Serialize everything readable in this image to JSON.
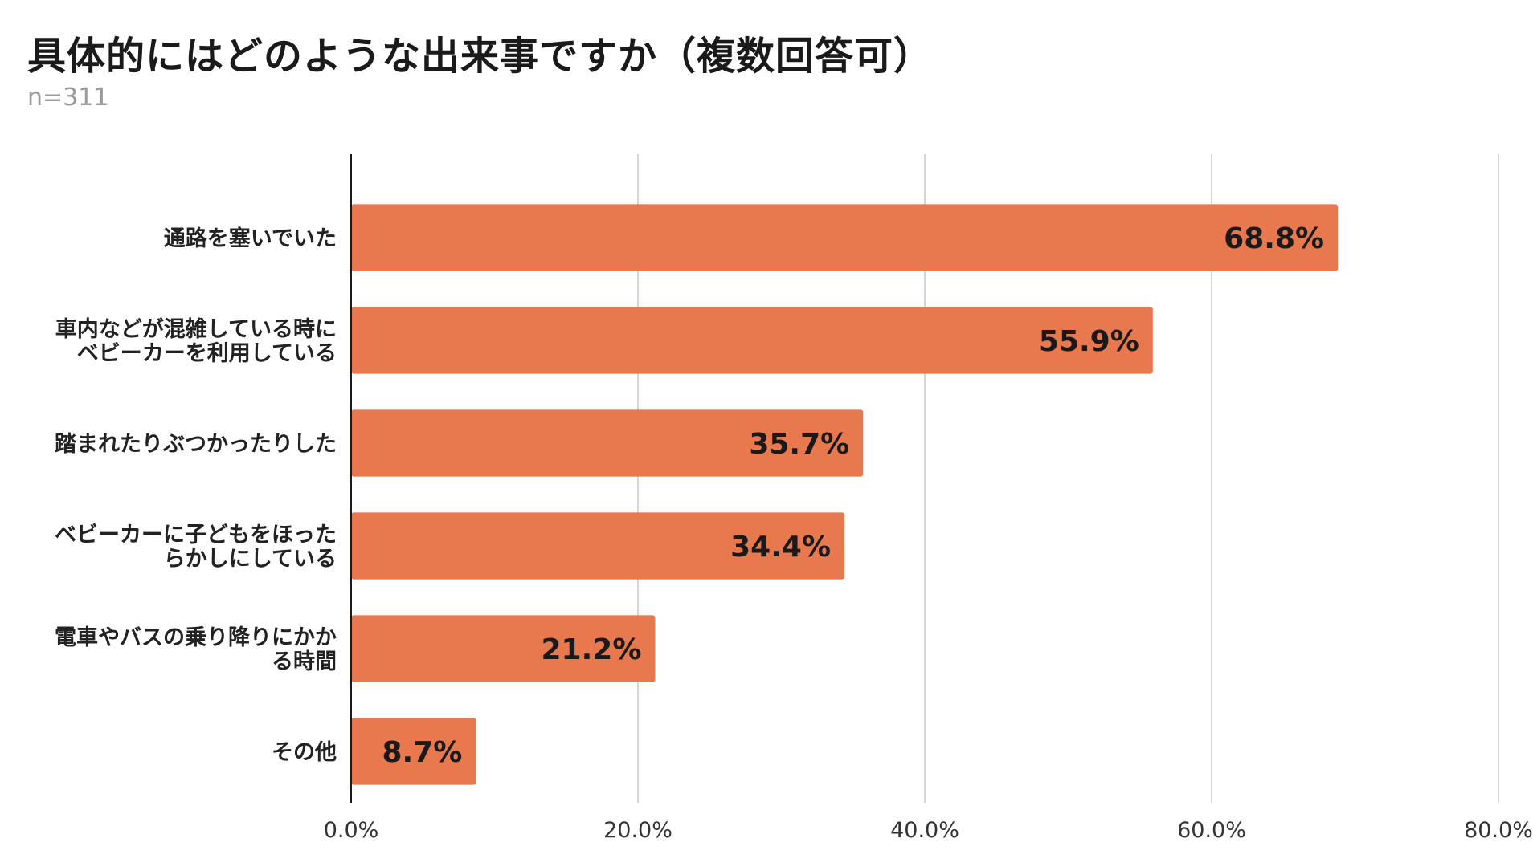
{
  "chart_data": {
    "type": "bar",
    "orientation": "horizontal",
    "title": "具体的にはどのような出来事ですか（複数回答可）",
    "subtitle": "n=311",
    "categories": [
      [
        "通路を塞いでいた"
      ],
      [
        "車内などが混雑している時に",
        "ベビーカーを利用している"
      ],
      [
        "踏まれたりぶつかったりした"
      ],
      [
        "ベビーカーに子どもをほった",
        "らかしにしている"
      ],
      [
        "電車やバスの乗り降りにかか",
        "る時間"
      ],
      [
        "その他"
      ]
    ],
    "values": [
      68.8,
      55.9,
      35.7,
      34.4,
      21.2,
      8.7
    ],
    "value_labels": [
      "68.8%",
      "55.9%",
      "35.7%",
      "34.4%",
      "21.2%",
      "8.7%"
    ],
    "xlim": [
      0,
      80
    ],
    "ticks": [
      0,
      20,
      40,
      60,
      80
    ],
    "tick_labels": [
      "0.0%",
      "20.0%",
      "40.0%",
      "60.0%",
      "80.0%"
    ],
    "grid": true,
    "legend": "none",
    "colors": {
      "bar": "#E8784E",
      "grid": "#d6d6d6",
      "axis": "#1a1a1a"
    }
  }
}
